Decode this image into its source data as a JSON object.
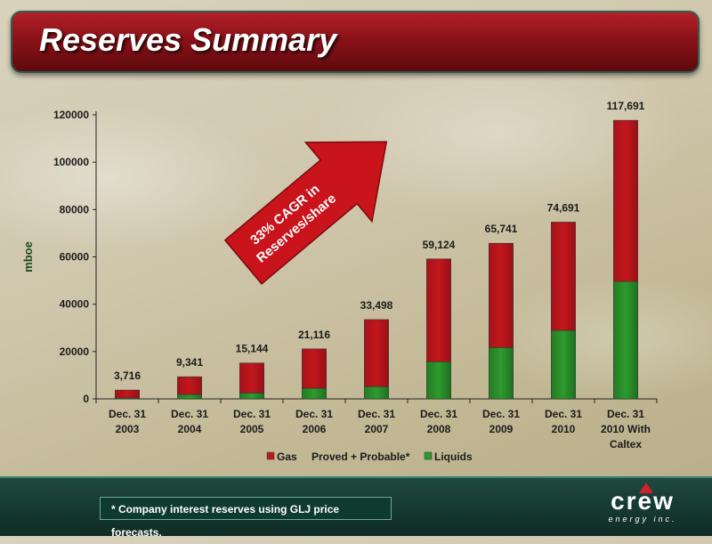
{
  "slide": {
    "title": "Reserves Summary",
    "footnote": "*  Company interest reserves using GLJ price forecasts.",
    "logo_word": "crew",
    "logo_sub": "energy inc."
  },
  "callout": {
    "line1": "33% CAGR in",
    "line2": "Reserves/share"
  },
  "colors": {
    "gas": "#c0171c",
    "liquids": "#2e9a2e",
    "header": "#8a1218",
    "footer": "#163a31"
  },
  "chart_data": {
    "type": "bar",
    "stacked": true,
    "ylabel": "mboe",
    "xlabel": "",
    "ylim": [
      0,
      120000
    ],
    "yticks": [
      "0",
      "20000",
      "40000",
      "60000",
      "80000",
      "100000",
      "120000"
    ],
    "categories": [
      [
        "Dec. 31",
        "2003"
      ],
      [
        "Dec. 31",
        "2004"
      ],
      [
        "Dec. 31",
        "2005"
      ],
      [
        "Dec. 31",
        "2006"
      ],
      [
        "Dec. 31",
        "2007"
      ],
      [
        "Dec. 31",
        "2008"
      ],
      [
        "Dec. 31",
        "2009"
      ],
      [
        "Dec. 31",
        "2010"
      ],
      [
        "Dec. 31",
        "2010 With",
        "Caltex"
      ]
    ],
    "series": [
      {
        "name": "Liquids",
        "values": [
          400,
          1800,
          2500,
          4500,
          5200,
          15700,
          21700,
          28900,
          49600
        ]
      },
      {
        "name": "Gas",
        "values": [
          3316,
          7541,
          12644,
          16616,
          28298,
          43424,
          44041,
          45791,
          68091
        ]
      }
    ],
    "totals": [
      "3,716",
      "9,341",
      "15,144",
      "21,116",
      "33,498",
      "59,124",
      "65,741",
      "74,691",
      "117,691"
    ],
    "legend": {
      "placement": "bottom",
      "items": [
        "Gas",
        "Proved + Probable*",
        "Liquids"
      ]
    }
  }
}
